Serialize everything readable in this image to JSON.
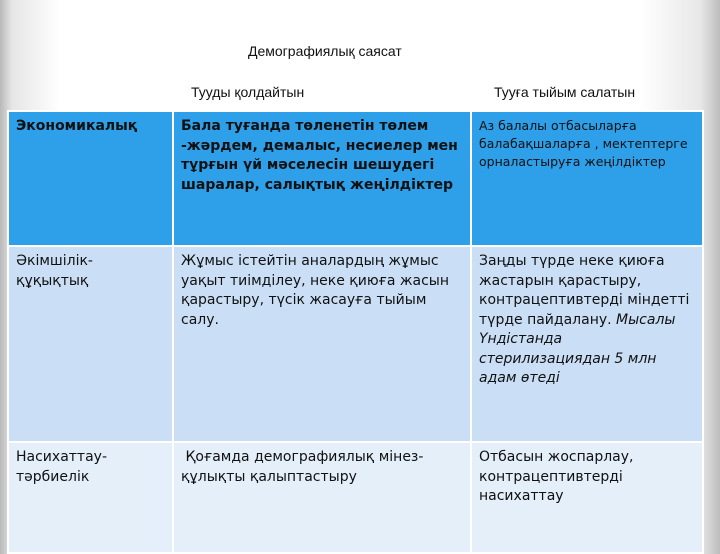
{
  "slide": {
    "title": "Демографиялық саясат",
    "column_headers": [
      "Тууды қолдайтын",
      "Тууға тыйым салатын"
    ]
  },
  "table": {
    "rows": [
      {
        "category": "Экономикалық",
        "support": "Бала туғанда төленетін төлем -жәрдем, демалыс, несиелер мен тұрғын үй мәселесін шешудегі шаралар, салықтық жеңілдіктер",
        "restrict": "Аз балалы отбасыларға балабақшаларға , мектептерге орналастыруға жеңілдіктер"
      },
      {
        "category": "Әкімшілік-құқықтық",
        "support": "Жұмыс істейтін аналардың жұмыс уақыт тиімділеу, неке қиюға жасын қарастыру, түсік жасауға тыйым салу.",
        "restrict": "Заңды түрде неке қиюға жастарын қарастыру, контрацептивтерді міндетті түрде пайдалану.",
        "restrict_italic": "Мысалы Үндістанда стерилизациядан 5 млн адам өтеді"
      },
      {
        "category": "Насихаттау-тәрбиелік",
        "support": " Қоғамда демографиялық мінез-құлықты қалыптастыру",
        "restrict": "Отбасын жоспарлау, контрацептивтерді насихаттау"
      }
    ]
  },
  "colors": {
    "header_row": "#2e9fe9",
    "row_2": "#cadff6",
    "row_3": "#e4effa"
  }
}
